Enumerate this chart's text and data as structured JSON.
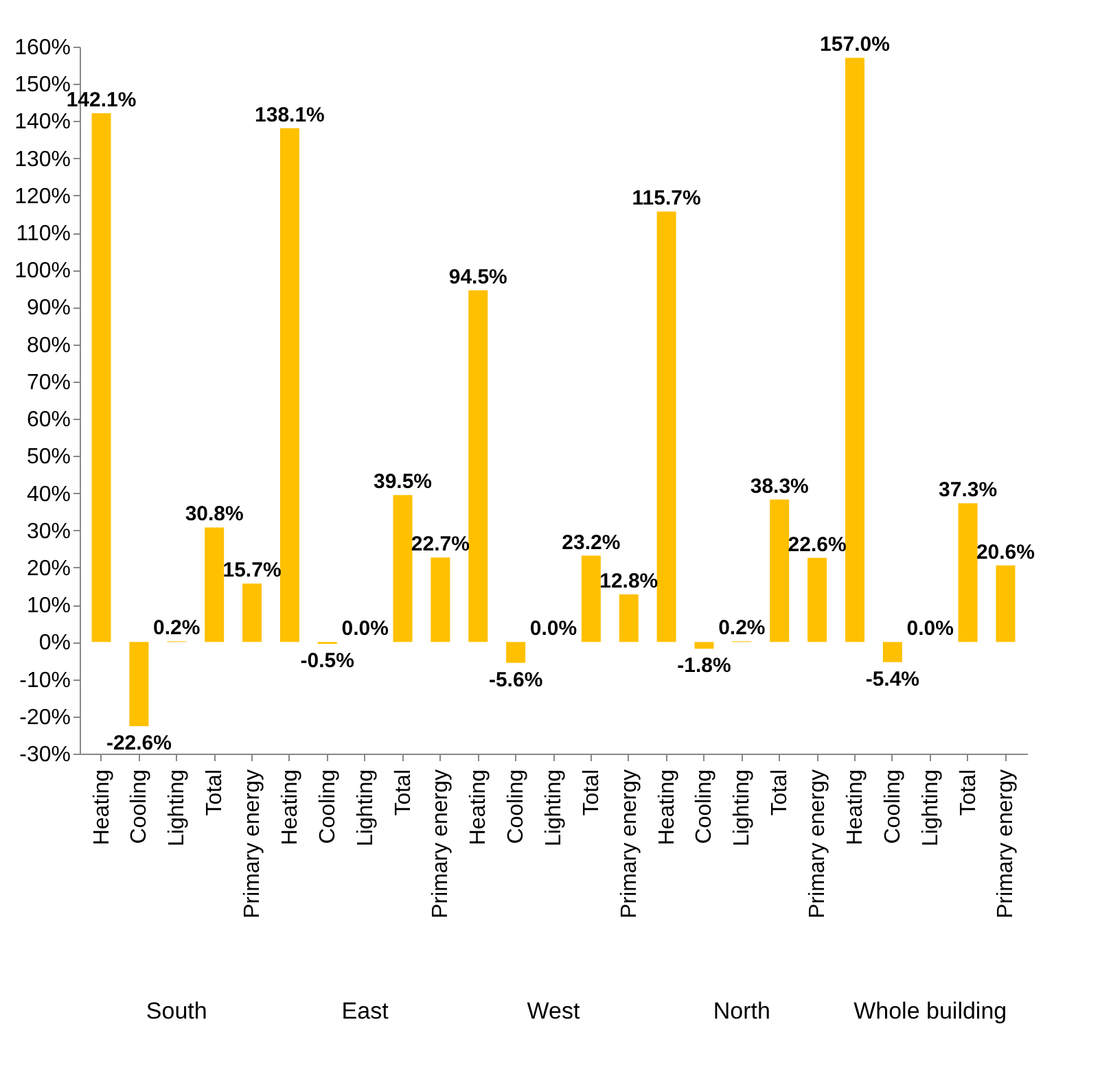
{
  "chart_data": {
    "type": "bar",
    "categories": [
      "Heating",
      "Cooling",
      "Lighting",
      "Total",
      "Primary energy",
      "Heating",
      "Cooling",
      "Lighting",
      "Total",
      "Primary energy",
      "Heating",
      "Cooling",
      "Lighting",
      "Total",
      "Primary energy",
      "Heating",
      "Cooling",
      "Lighting",
      "Total",
      "Primary energy",
      "Heating",
      "Cooling",
      "Lighting",
      "Total",
      "Primary energy"
    ],
    "values": [
      142.1,
      -22.6,
      0.2,
      30.8,
      15.7,
      138.1,
      -0.5,
      0.0,
      39.5,
      22.7,
      94.5,
      -5.6,
      0.0,
      23.2,
      12.8,
      115.7,
      -1.8,
      0.2,
      38.3,
      22.6,
      157.0,
      -5.4,
      0.0,
      37.3,
      20.6
    ],
    "value_labels": [
      "142.1%",
      "-22.6%",
      "0.2%",
      "30.8%",
      "15.7%",
      "138.1%",
      "-0.5%",
      "0.0%",
      "39.5%",
      "22.7%",
      "94.5%",
      "-5.6%",
      "0.0%",
      "23.2%",
      "12.8%",
      "115.7%",
      "-1.8%",
      "0.2%",
      "38.3%",
      "22.6%",
      "157.0%",
      "-5.4%",
      "0.0%",
      "37.3%",
      "20.6%"
    ],
    "color": "#ffc000",
    "annotations": [
      "South",
      "East",
      "West",
      "North",
      "Whole building"
    ],
    "ylim": [
      -30,
      160
    ],
    "yticks": [
      {
        "value": -30,
        "label": "-30%"
      },
      {
        "value": -20,
        "label": "-20%"
      },
      {
        "value": -10,
        "label": "-10%"
      },
      {
        "value": 0,
        "label": "0%"
      },
      {
        "value": 10,
        "label": "10%"
      },
      {
        "value": 20,
        "label": "20%"
      },
      {
        "value": 30,
        "label": "30%"
      },
      {
        "value": 40,
        "label": "40%"
      },
      {
        "value": 50,
        "label": "50%"
      },
      {
        "value": 60,
        "label": "60%"
      },
      {
        "value": 70,
        "label": "70%"
      },
      {
        "value": 80,
        "label": "80%"
      },
      {
        "value": 90,
        "label": "90%"
      },
      {
        "value": 100,
        "label": "100%"
      },
      {
        "value": 110,
        "label": "110%"
      },
      {
        "value": 120,
        "label": "120%"
      },
      {
        "value": 130,
        "label": "130%"
      },
      {
        "value": 140,
        "label": "140%"
      },
      {
        "value": 150,
        "label": "150%"
      },
      {
        "value": 160,
        "label": "160%"
      }
    ],
    "grid": false
  }
}
